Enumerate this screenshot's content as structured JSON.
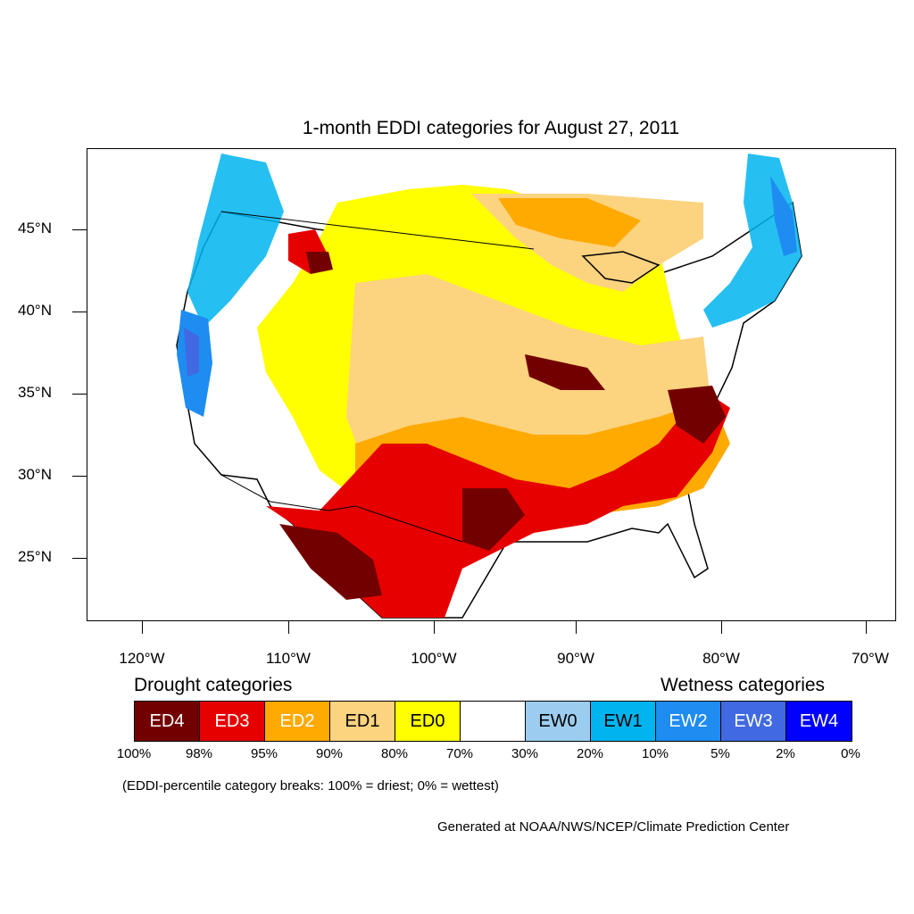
{
  "title": "1-month EDDI categories for August 27, 2011",
  "lat_labels": [
    "45°N",
    "40°N",
    "35°N",
    "30°N",
    "25°N"
  ],
  "lon_labels": [
    "120°W",
    "110°W",
    "100°W",
    "90°W",
    "80°W",
    "70°W"
  ],
  "legend": {
    "drought_heading": "Drought categories",
    "wetness_heading": "Wetness categories",
    "categories": [
      {
        "label": "ED4",
        "color": "#730000",
        "text_color": "#ffffff"
      },
      {
        "label": "ED3",
        "color": "#e60000",
        "text_color": "#ffffff"
      },
      {
        "label": "ED2",
        "color": "#ffaa00",
        "text_color": "#ffffff"
      },
      {
        "label": "ED1",
        "color": "#fcd37f",
        "text_color": "#000000"
      },
      {
        "label": "ED0",
        "color": "#ffff00",
        "text_color": "#000000"
      },
      {
        "label": "",
        "color": "#ffffff",
        "text_color": "#000000"
      },
      {
        "label": "EW0",
        "color": "#9ccdf0",
        "text_color": "#000000"
      },
      {
        "label": "EW1",
        "color": "#00b4f0",
        "text_color": "#000000"
      },
      {
        "label": "EW2",
        "color": "#1e8cf0",
        "text_color": "#ffffff"
      },
      {
        "label": "EW3",
        "color": "#4169e1",
        "text_color": "#ffffff"
      },
      {
        "label": "EW4",
        "color": "#0000ff",
        "text_color": "#ffffff"
      }
    ],
    "breaks": [
      "100%",
      "98%",
      "95%",
      "90%",
      "80%",
      "70%",
      "30%",
      "20%",
      "10%",
      "5%",
      "2%",
      "0%"
    ]
  },
  "note": "(EDDI-percentile category breaks: 100% = driest; 0% = wettest)",
  "credit": "Generated at NOAA/NWS/NCEP/Climate Prediction Center"
}
